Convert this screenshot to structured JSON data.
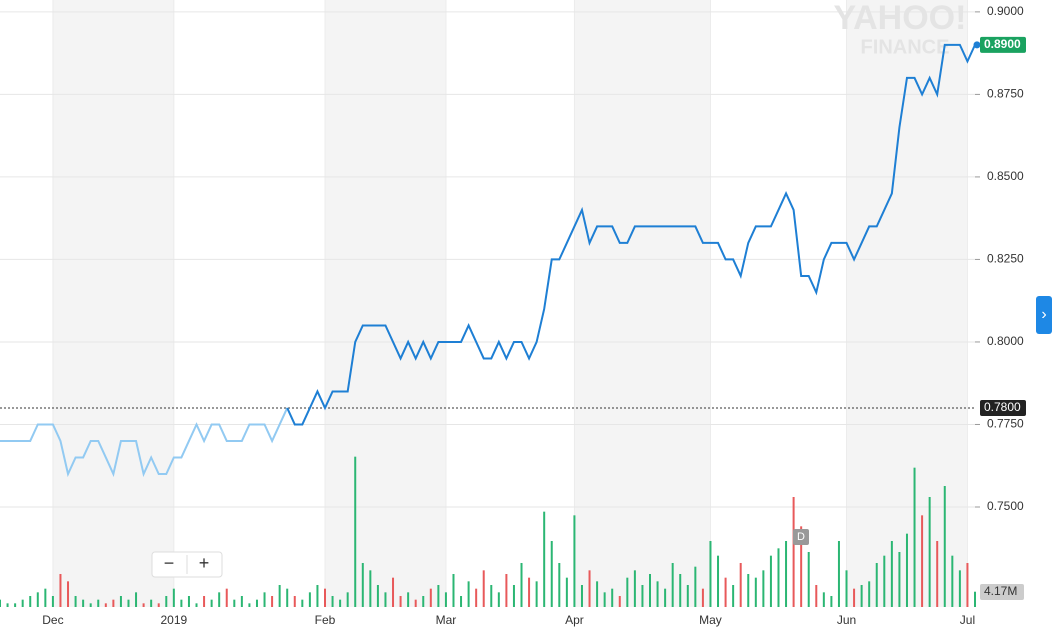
{
  "chart_data": {
    "type": "line",
    "categories": [
      null,
      null,
      null,
      null,
      null,
      null,
      null,
      "Dec",
      null,
      null,
      null,
      null,
      null,
      null,
      null,
      null,
      null,
      null,
      null,
      null,
      null,
      null,
      null,
      "2019",
      null,
      null,
      null,
      null,
      null,
      null,
      null,
      null,
      null,
      null,
      null,
      null,
      null,
      null,
      null,
      null,
      null,
      null,
      null,
      "Feb",
      null,
      null,
      null,
      null,
      null,
      null,
      null,
      null,
      null,
      null,
      null,
      null,
      null,
      null,
      null,
      "Mar",
      null,
      null,
      null,
      null,
      null,
      null,
      null,
      null,
      null,
      null,
      null,
      null,
      null,
      null,
      null,
      null,
      "Apr",
      null,
      null,
      null,
      null,
      null,
      null,
      null,
      null,
      null,
      null,
      null,
      null,
      null,
      null,
      null,
      null,
      null,
      "May",
      null,
      null,
      null,
      null,
      null,
      null,
      null,
      null,
      null,
      null,
      null,
      null,
      null,
      null,
      null,
      null,
      null,
      "Jun",
      null,
      null,
      null,
      null,
      null,
      null,
      null,
      null,
      null,
      null,
      null,
      null,
      null,
      null,
      null,
      "Jul",
      null
    ],
    "values": [
      0.77,
      0.77,
      0.77,
      0.77,
      0.77,
      0.775,
      0.775,
      0.775,
      0.77,
      0.76,
      0.765,
      0.765,
      0.77,
      0.77,
      0.765,
      0.76,
      0.77,
      0.77,
      0.77,
      0.76,
      0.765,
      0.76,
      0.76,
      0.765,
      0.765,
      0.77,
      0.775,
      0.77,
      0.775,
      0.775,
      0.77,
      0.77,
      0.77,
      0.775,
      0.775,
      0.775,
      0.77,
      0.775,
      0.78,
      0.775,
      0.775,
      0.78,
      0.785,
      0.78,
      0.785,
      0.785,
      0.785,
      0.8,
      0.805,
      0.805,
      0.805,
      0.805,
      0.8,
      0.795,
      0.8,
      0.795,
      0.8,
      0.795,
      0.8,
      0.8,
      0.8,
      0.8,
      0.805,
      0.8,
      0.795,
      0.795,
      0.8,
      0.795,
      0.8,
      0.8,
      0.795,
      0.8,
      0.81,
      0.825,
      0.825,
      0.83,
      0.835,
      0.84,
      0.83,
      0.835,
      0.835,
      0.835,
      0.83,
      0.83,
      0.835,
      0.835,
      0.835,
      0.835,
      0.835,
      0.835,
      0.835,
      0.835,
      0.835,
      0.83,
      0.83,
      0.83,
      0.825,
      0.825,
      0.82,
      0.83,
      0.835,
      0.835,
      0.835,
      0.84,
      0.845,
      0.84,
      0.82,
      0.82,
      0.815,
      0.825,
      0.83,
      0.83,
      0.83,
      0.825,
      0.83,
      0.835,
      0.835,
      0.84,
      0.845,
      0.865,
      0.88,
      0.88,
      0.875,
      0.88,
      0.875,
      0.89,
      0.89,
      0.89,
      0.885,
      0.89
    ],
    "color": "#1e7fd4",
    "faded_color": "#92caf2",
    "highlight_start": 38,
    "ylim": [
      0.7197,
      0.9036
    ],
    "yticks": [
      {
        "value": 0.75,
        "label": "0.7500"
      },
      {
        "value": 0.775,
        "label": "0.7750"
      },
      {
        "value": 0.8,
        "label": "0.8000"
      },
      {
        "value": 0.825,
        "label": "0.8250"
      },
      {
        "value": 0.85,
        "label": "0.8500"
      },
      {
        "value": 0.875,
        "label": "0.8750"
      },
      {
        "value": 0.9,
        "label": "0.9000"
      }
    ],
    "grid": true,
    "reference_line": {
      "value": 0.78,
      "label": "0.7800"
    },
    "last_price": {
      "value": 0.89,
      "label": "0.8900"
    },
    "volume": {
      "values": [
        2,
        1,
        1,
        2,
        3,
        4,
        5,
        3,
        9,
        7,
        3,
        2,
        1,
        2,
        1,
        2,
        3,
        2,
        4,
        1,
        2,
        1,
        3,
        5,
        2,
        3,
        1,
        3,
        2,
        4,
        5,
        2,
        3,
        1,
        2,
        4,
        3,
        6,
        5,
        3,
        2,
        4,
        6,
        5,
        3,
        2,
        4,
        41,
        12,
        10,
        6,
        4,
        8,
        3,
        4,
        2,
        3,
        5,
        6,
        4,
        9,
        3,
        7,
        5,
        10,
        6,
        4,
        9,
        6,
        12,
        8,
        7,
        26,
        18,
        12,
        8,
        25,
        6,
        10,
        7,
        4,
        5,
        3,
        8,
        10,
        6,
        9,
        7,
        5,
        12,
        9,
        6,
        11,
        5,
        18,
        14,
        8,
        6,
        12,
        9,
        8,
        10,
        14,
        16,
        18,
        30,
        22,
        15,
        6,
        4,
        3,
        18,
        10,
        5,
        6,
        7,
        12,
        14,
        18,
        15,
        20,
        38,
        25,
        30,
        18,
        33,
        14,
        10,
        12,
        4.17
      ],
      "vlim": [
        0,
        45
      ],
      "up_color": "#2bb673",
      "down_color": "#e8595a",
      "last_label": {
        "value": 4.17,
        "label": "4.17M"
      }
    }
  },
  "ui": {
    "zoom_out": "−",
    "zoom_in": "+",
    "event_marker": "D",
    "watermark_top": "YAHOO!",
    "watermark_bottom": "FINANCE",
    "next_button": "›"
  }
}
